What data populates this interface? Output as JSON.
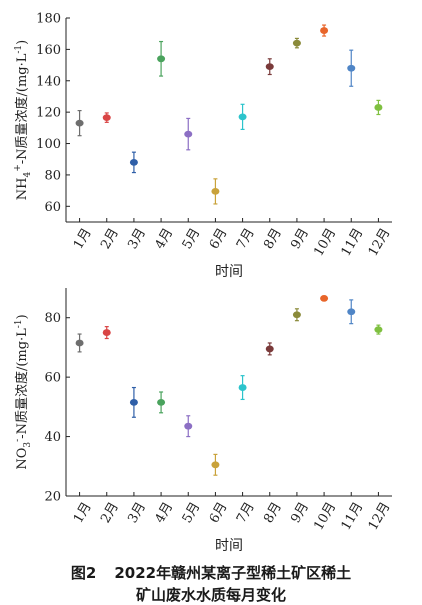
{
  "figure": {
    "caption_number": "图2",
    "caption_line1": "2022年赣州某离子型稀土矿区稀土",
    "caption_line2": "矿山废水水质每月变化"
  },
  "chart_data": [
    {
      "type": "scatter",
      "subtype": "errorbar",
      "title": "",
      "xlabel": "时间",
      "ylabel": "NH4+-N质量浓度/(mg·L-1)",
      "ylabel_parts": {
        "prefix": "NH",
        "sub": "4",
        "sup": "+",
        "suffix": "-N质量浓度/(mg·L",
        "sup2": "-1",
        "end": ")"
      },
      "categories": [
        "1月",
        "2月",
        "3月",
        "4月",
        "5月",
        "6月",
        "7月",
        "8月",
        "9月",
        "10月",
        "11月",
        "12月"
      ],
      "values": [
        113,
        116.5,
        88,
        154,
        106,
        69.5,
        117,
        149,
        164,
        172,
        148,
        123
      ],
      "errors": [
        8,
        3,
        6.5,
        11,
        10,
        8,
        8,
        5,
        3,
        3.5,
        11.5,
        4.5
      ],
      "colors": [
        "#6e6e6e",
        "#d94545",
        "#2f5fa8",
        "#4aa35d",
        "#8c6fc4",
        "#c9a23a",
        "#2cc4cc",
        "#7a3a3a",
        "#8a8a3a",
        "#e8652a",
        "#4f85c6",
        "#7fc040"
      ],
      "ylim": [
        50,
        180
      ],
      "yticks": [
        60,
        80,
        100,
        120,
        140,
        160,
        180
      ],
      "grid": false
    },
    {
      "type": "scatter",
      "subtype": "errorbar",
      "title": "",
      "xlabel": "时间",
      "ylabel": "NO3--N质量浓度/(mg·L-1)",
      "ylabel_parts": {
        "prefix": "NO",
        "sub": "3",
        "sup": "-",
        "suffix": "-N质量浓度/(mg·L",
        "sup2": "-1",
        "end": ")"
      },
      "categories": [
        "1月",
        "2月",
        "3月",
        "4月",
        "5月",
        "6月",
        "7月",
        "8月",
        "9月",
        "10月",
        "11月",
        "12月"
      ],
      "values": [
        71.5,
        75,
        51.5,
        51.5,
        43.5,
        30.5,
        56.5,
        69.5,
        81,
        86.5,
        82,
        76
      ],
      "errors": [
        3,
        2,
        5,
        3.5,
        3.5,
        3.5,
        4,
        2,
        2,
        0.8,
        4,
        1.5
      ],
      "colors": [
        "#6e6e6e",
        "#d94545",
        "#2f5fa8",
        "#4aa35d",
        "#8c6fc4",
        "#c9a23a",
        "#2cc4cc",
        "#7a3a3a",
        "#8a8a3a",
        "#e8652a",
        "#4f85c6",
        "#7fc040"
      ],
      "ylim": [
        20,
        90
      ],
      "yticks": [
        20,
        40,
        60,
        80
      ],
      "grid": false
    }
  ]
}
